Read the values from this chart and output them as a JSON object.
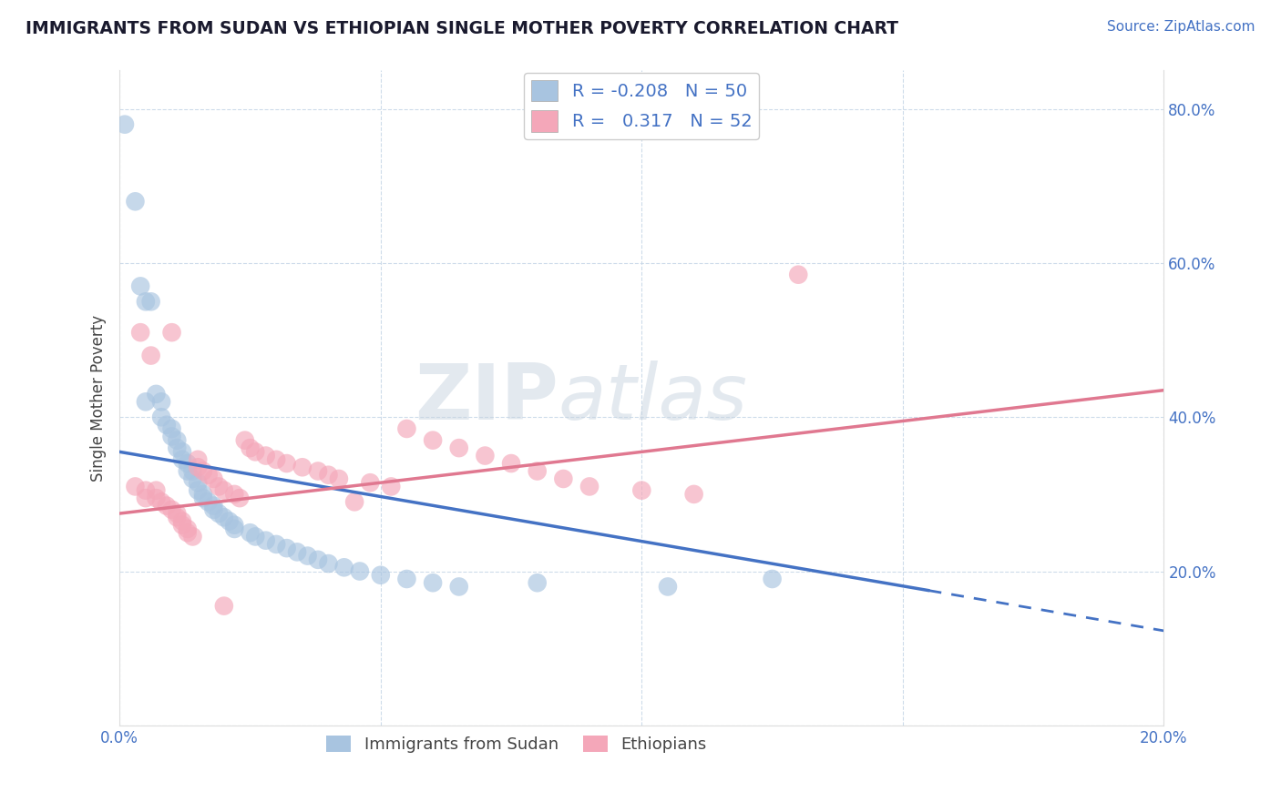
{
  "title": "IMMIGRANTS FROM SUDAN VS ETHIOPIAN SINGLE MOTHER POVERTY CORRELATION CHART",
  "source": "Source: ZipAtlas.com",
  "ylabel": "Single Mother Poverty",
  "xlim": [
    0.0,
    0.2
  ],
  "ylim": [
    0.0,
    0.85
  ],
  "sudan_R": -0.208,
  "sudan_N": 50,
  "ethiopian_R": 0.317,
  "ethiopian_N": 52,
  "sudan_color": "#a8c4e0",
  "ethiopian_color": "#f4a7b9",
  "sudan_line_color": "#4472c4",
  "ethiopian_line_color": "#e07890",
  "sudan_scatter": [
    [
      0.001,
      0.78
    ],
    [
      0.003,
      0.68
    ],
    [
      0.004,
      0.57
    ],
    [
      0.005,
      0.55
    ],
    [
      0.005,
      0.42
    ],
    [
      0.006,
      0.55
    ],
    [
      0.007,
      0.43
    ],
    [
      0.008,
      0.42
    ],
    [
      0.008,
      0.4
    ],
    [
      0.009,
      0.39
    ],
    [
      0.01,
      0.385
    ],
    [
      0.01,
      0.375
    ],
    [
      0.011,
      0.37
    ],
    [
      0.011,
      0.36
    ],
    [
      0.012,
      0.355
    ],
    [
      0.012,
      0.345
    ],
    [
      0.013,
      0.34
    ],
    [
      0.013,
      0.33
    ],
    [
      0.014,
      0.33
    ],
    [
      0.014,
      0.32
    ],
    [
      0.015,
      0.315
    ],
    [
      0.015,
      0.305
    ],
    [
      0.016,
      0.3
    ],
    [
      0.016,
      0.295
    ],
    [
      0.017,
      0.29
    ],
    [
      0.018,
      0.285
    ],
    [
      0.018,
      0.28
    ],
    [
      0.019,
      0.275
    ],
    [
      0.02,
      0.27
    ],
    [
      0.021,
      0.265
    ],
    [
      0.022,
      0.26
    ],
    [
      0.022,
      0.255
    ],
    [
      0.025,
      0.25
    ],
    [
      0.026,
      0.245
    ],
    [
      0.028,
      0.24
    ],
    [
      0.03,
      0.235
    ],
    [
      0.032,
      0.23
    ],
    [
      0.034,
      0.225
    ],
    [
      0.036,
      0.22
    ],
    [
      0.038,
      0.215
    ],
    [
      0.04,
      0.21
    ],
    [
      0.043,
      0.205
    ],
    [
      0.046,
      0.2
    ],
    [
      0.05,
      0.195
    ],
    [
      0.055,
      0.19
    ],
    [
      0.06,
      0.185
    ],
    [
      0.065,
      0.18
    ],
    [
      0.08,
      0.185
    ],
    [
      0.105,
      0.18
    ],
    [
      0.125,
      0.19
    ]
  ],
  "ethiopian_scatter": [
    [
      0.003,
      0.31
    ],
    [
      0.004,
      0.51
    ],
    [
      0.005,
      0.305
    ],
    [
      0.005,
      0.295
    ],
    [
      0.006,
      0.48
    ],
    [
      0.007,
      0.305
    ],
    [
      0.007,
      0.295
    ],
    [
      0.008,
      0.29
    ],
    [
      0.009,
      0.285
    ],
    [
      0.01,
      0.28
    ],
    [
      0.01,
      0.51
    ],
    [
      0.011,
      0.275
    ],
    [
      0.011,
      0.27
    ],
    [
      0.012,
      0.265
    ],
    [
      0.012,
      0.26
    ],
    [
      0.013,
      0.255
    ],
    [
      0.013,
      0.25
    ],
    [
      0.014,
      0.245
    ],
    [
      0.015,
      0.345
    ],
    [
      0.015,
      0.335
    ],
    [
      0.016,
      0.33
    ],
    [
      0.017,
      0.325
    ],
    [
      0.018,
      0.32
    ],
    [
      0.019,
      0.31
    ],
    [
      0.02,
      0.305
    ],
    [
      0.02,
      0.155
    ],
    [
      0.022,
      0.3
    ],
    [
      0.023,
      0.295
    ],
    [
      0.024,
      0.37
    ],
    [
      0.025,
      0.36
    ],
    [
      0.026,
      0.355
    ],
    [
      0.028,
      0.35
    ],
    [
      0.03,
      0.345
    ],
    [
      0.032,
      0.34
    ],
    [
      0.035,
      0.335
    ],
    [
      0.038,
      0.33
    ],
    [
      0.04,
      0.325
    ],
    [
      0.042,
      0.32
    ],
    [
      0.045,
      0.29
    ],
    [
      0.048,
      0.315
    ],
    [
      0.052,
      0.31
    ],
    [
      0.055,
      0.385
    ],
    [
      0.06,
      0.37
    ],
    [
      0.065,
      0.36
    ],
    [
      0.07,
      0.35
    ],
    [
      0.075,
      0.34
    ],
    [
      0.08,
      0.33
    ],
    [
      0.085,
      0.32
    ],
    [
      0.09,
      0.31
    ],
    [
      0.1,
      0.305
    ],
    [
      0.11,
      0.3
    ],
    [
      0.13,
      0.585
    ]
  ],
  "background_color": "#ffffff",
  "grid_color": "#c8d8e8",
  "watermark_color": "#c8d4e0",
  "title_color": "#1a1a2e",
  "source_color": "#4472c4",
  "r_value_color": "#4472c4",
  "tick_color": "#4472c4"
}
